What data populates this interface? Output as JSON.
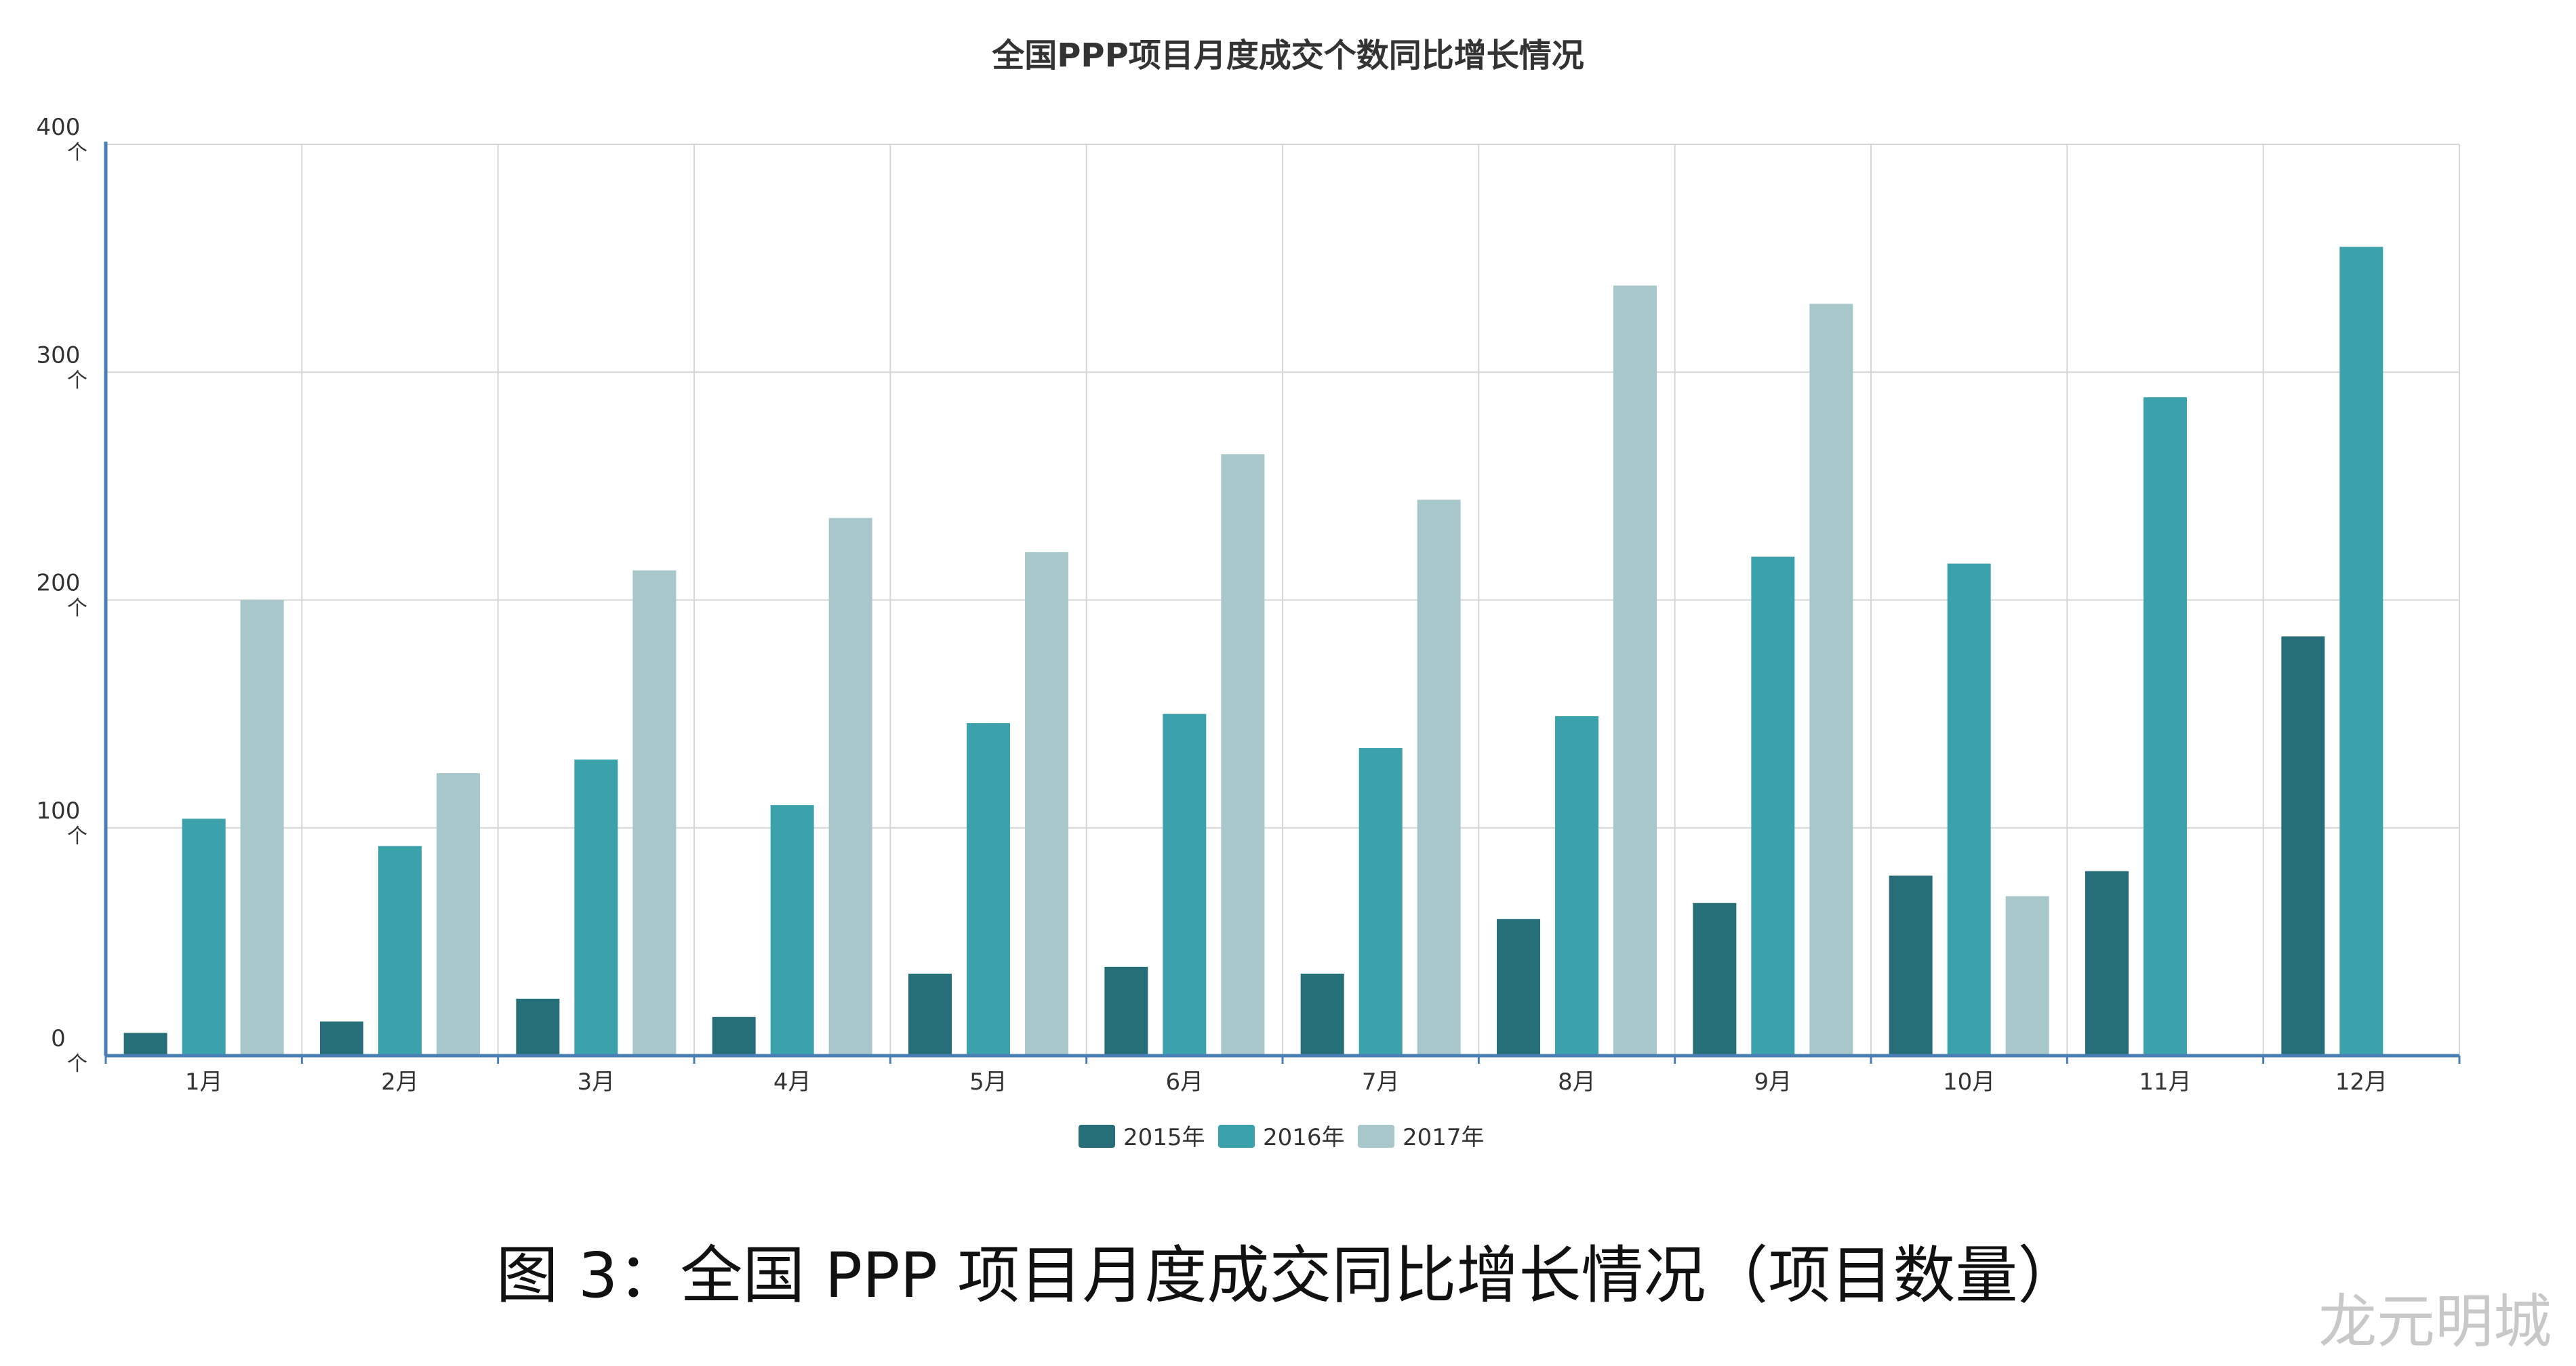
{
  "chart_data": {
    "type": "bar",
    "title": "全国PPP项目月度成交个数同比增长情况",
    "categories": [
      "1月",
      "2月",
      "3月",
      "4月",
      "5月",
      "6月",
      "7月",
      "8月",
      "9月",
      "10月",
      "11月",
      "12月"
    ],
    "series": [
      {
        "name": "2015年",
        "color": "#276f78",
        "values": [
          10,
          15,
          25,
          17,
          36,
          39,
          36,
          60,
          67,
          79,
          81,
          184
        ]
      },
      {
        "name": "2016年",
        "color": "#3ba1aa",
        "values": [
          104,
          92,
          130,
          110,
          146,
          150,
          135,
          149,
          219,
          216,
          289,
          355
        ]
      },
      {
        "name": "2017年",
        "color": "#a8c7ca",
        "values": [
          200,
          124,
          213,
          236,
          221,
          264,
          244,
          338,
          330,
          70,
          null,
          null
        ]
      }
    ],
    "ylim": [
      0,
      400
    ],
    "y_ticks": [
      {
        "value": 0,
        "label": "0",
        "unit": "个"
      },
      {
        "value": 100,
        "label": "100",
        "unit": "个"
      },
      {
        "value": 200,
        "label": "200",
        "unit": "个"
      },
      {
        "value": 300,
        "label": "300",
        "unit": "个"
      },
      {
        "value": 400,
        "label": "400",
        "unit": "个"
      }
    ],
    "grid": true,
    "legend_position": "bottom"
  },
  "caption": "图 3：全国 PPP 项目月度成交同比增长情况（项目数量）",
  "corner_mark": "龙元明城"
}
